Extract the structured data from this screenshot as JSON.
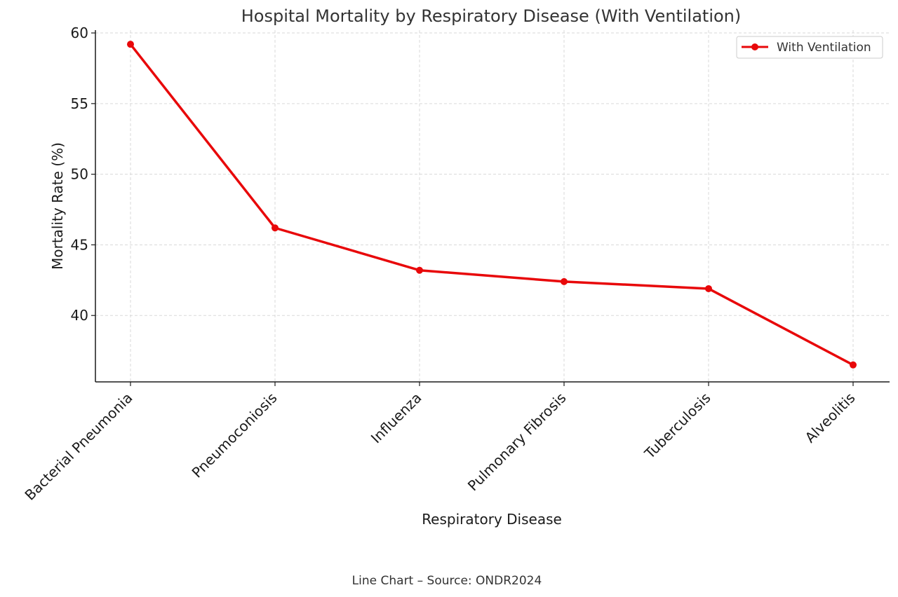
{
  "chart_data": {
    "type": "line",
    "title": "Hospital Mortality by Respiratory Disease (With Ventilation)",
    "xlabel": "Respiratory Disease",
    "ylabel": "Mortality Rate (%)",
    "categories": [
      "Bacterial Pneumonia",
      "Pneumoconiosis",
      "Influenza",
      "Pulmonary Fibrosis",
      "Tuberculosis",
      "Alveolitis"
    ],
    "series": [
      {
        "name": "With Ventilation",
        "values": [
          59.2,
          46.2,
          43.2,
          42.4,
          41.9,
          36.5
        ],
        "color": "#e8080a"
      }
    ],
    "ylim": [
      35.3,
      60.2
    ],
    "yticks": [
      40,
      45,
      50,
      55,
      60
    ],
    "grid": true,
    "legend_position": "top-right"
  },
  "caption": "Line Chart – Source: ONDR2024"
}
